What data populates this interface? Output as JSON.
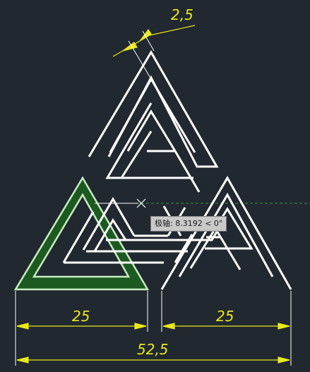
{
  "colors": {
    "background": "#212830",
    "geometry": "#ffffff",
    "dimension": "#e8e81c",
    "selected_fill": "#1d5a22",
    "selected_outline": "#c8ecc0",
    "tracking_line": "#2f9a3a",
    "tooltip_bg": "#c9c9c9"
  },
  "dimensions": {
    "gap": "2,5",
    "left_width": "25",
    "right_width": "25",
    "total_width": "52,5"
  },
  "tooltip": {
    "text": "极轴: 8.3192 < 0°"
  },
  "cursor": {
    "icon": "crosshair-cursor-icon"
  }
}
